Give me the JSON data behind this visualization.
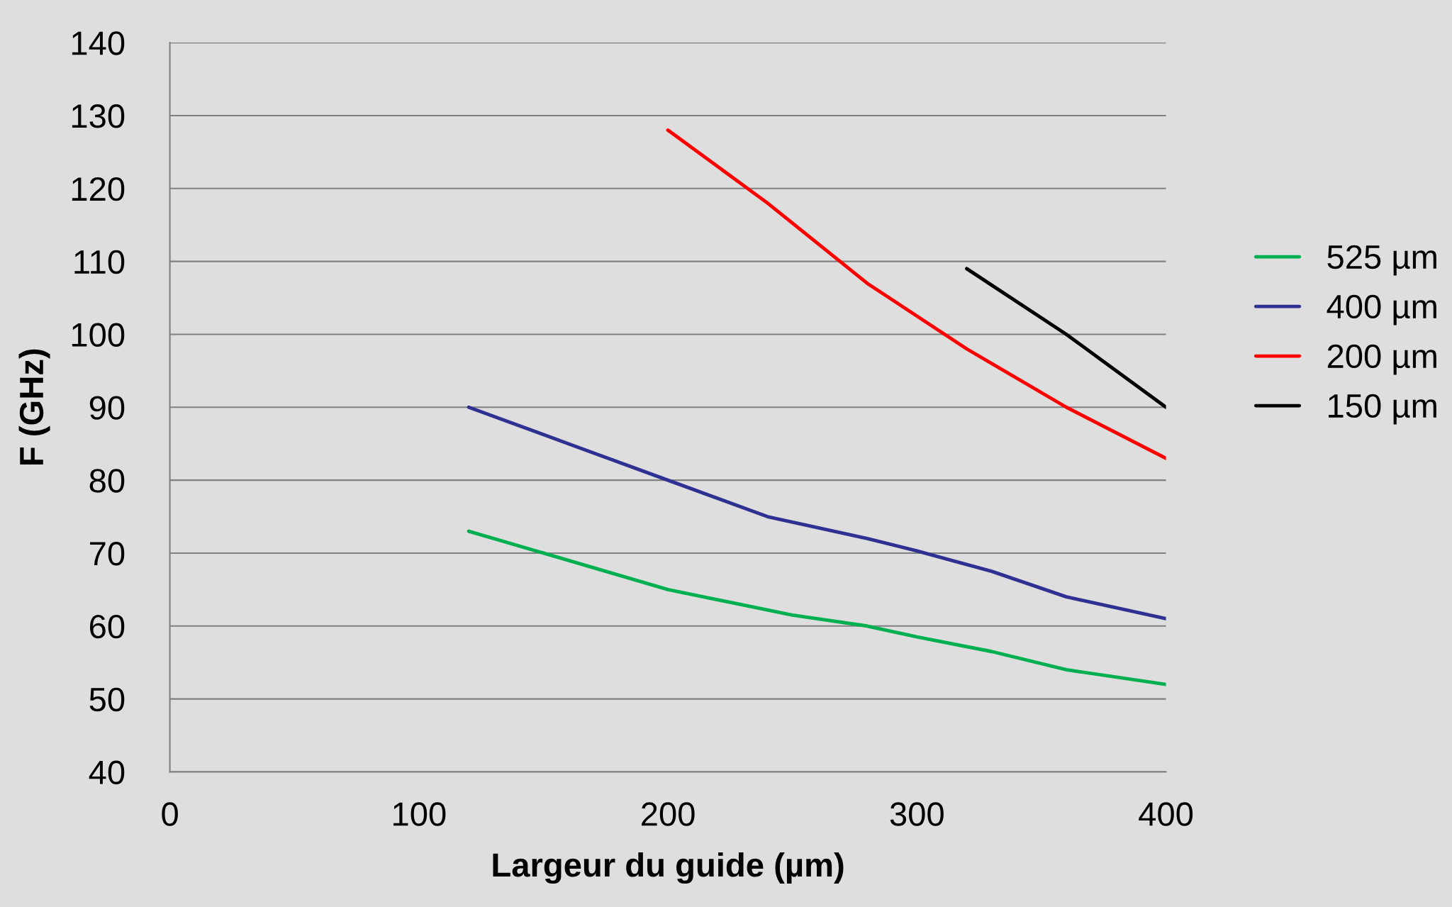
{
  "chart_data": {
    "type": "line",
    "xlabel": "Largeur du guide (µm)",
    "ylabel": "F (GHz)",
    "xlim": [
      0,
      400
    ],
    "xticks": [
      0,
      100,
      200,
      300,
      400
    ],
    "ylim": [
      40,
      140
    ],
    "yticks": [
      40,
      50,
      60,
      70,
      80,
      90,
      100,
      110,
      120,
      130,
      140
    ],
    "grid": "y",
    "legend": "right",
    "marker": "none",
    "line_style": "solid",
    "series": [
      {
        "name": "525 µm",
        "color": "#00b050",
        "x": [
          120,
          150,
          200,
          250,
          280,
          300,
          330,
          360,
          400
        ],
        "values": [
          73,
          70,
          65,
          61.5,
          60,
          58.5,
          56.5,
          54,
          52
        ]
      },
      {
        "name": "400 µm",
        "color": "#2e3192",
        "x": [
          120,
          160,
          200,
          240,
          280,
          300,
          330,
          360,
          400
        ],
        "values": [
          90,
          85,
          80,
          75,
          72,
          70.3,
          67.5,
          64,
          61
        ]
      },
      {
        "name": "200 µm",
        "color": "#ff0000",
        "x": [
          200,
          240,
          280,
          320,
          360,
          400
        ],
        "values": [
          128,
          118,
          107,
          98,
          90,
          83
        ]
      },
      {
        "name": "150 µm",
        "color": "#000000",
        "x": [
          320,
          360,
          400
        ],
        "values": [
          109,
          100,
          90
        ]
      }
    ]
  }
}
